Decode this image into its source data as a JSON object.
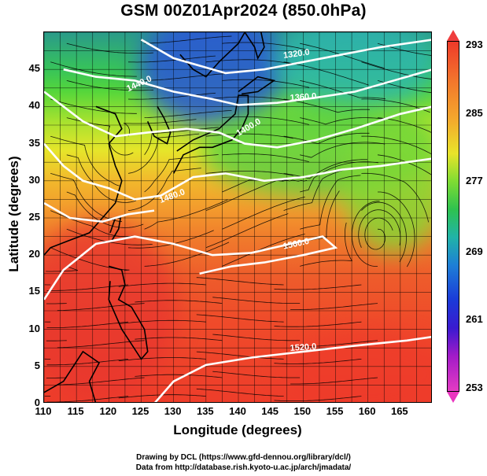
{
  "title": "GSM 00Z01Apr2024 (850.0hPa)",
  "x_axis": {
    "label": "Longitude (degrees)",
    "ticks": [
      "110",
      "115",
      "120",
      "125",
      "130",
      "135",
      "140",
      "145",
      "150",
      "155",
      "160",
      "165"
    ]
  },
  "y_axis": {
    "label": "Latitude  (degrees)",
    "ticks": [
      "0",
      "5",
      "10",
      "15",
      "20",
      "25",
      "30",
      "35",
      "40",
      "45"
    ]
  },
  "colorbar": {
    "labels": [
      "293",
      "285",
      "277",
      "269",
      "261",
      "253"
    ],
    "colors": {
      "max": "#ee3a2a",
      "mid_warm": "#f4a72d",
      "mid": "#2ec24f",
      "cool": "#1e7fd6",
      "cold": "#1b3ad8",
      "min": "#e43bc3"
    }
  },
  "contours": {
    "labels": [
      "1320.0",
      "1360.0",
      "1400.0",
      "1440.0",
      "1480.0",
      "1560.0",
      "1520.0"
    ],
    "color": "#ffffff"
  },
  "credits": {
    "line1": "Drawing by DCL (https://www.gfd-dennou.org/library/dcl/)",
    "line2": "Data from http://database.rish.kyoto-u.ac.jp/arch/jmadata/"
  },
  "chart_data": {
    "type": "heatmap",
    "title": "GSM 00Z01Apr2024 (850.0hPa)",
    "xlabel": "Longitude (degrees)",
    "ylabel": "Latitude  (degrees)",
    "xlim": [
      110,
      170
    ],
    "ylim": [
      0,
      50
    ],
    "colorbar_range": [
      253,
      293
    ],
    "contour_levels": [
      1320.0,
      1360.0,
      1400.0,
      1440.0,
      1480.0,
      1520.0,
      1560.0
    ],
    "grid": true
  }
}
